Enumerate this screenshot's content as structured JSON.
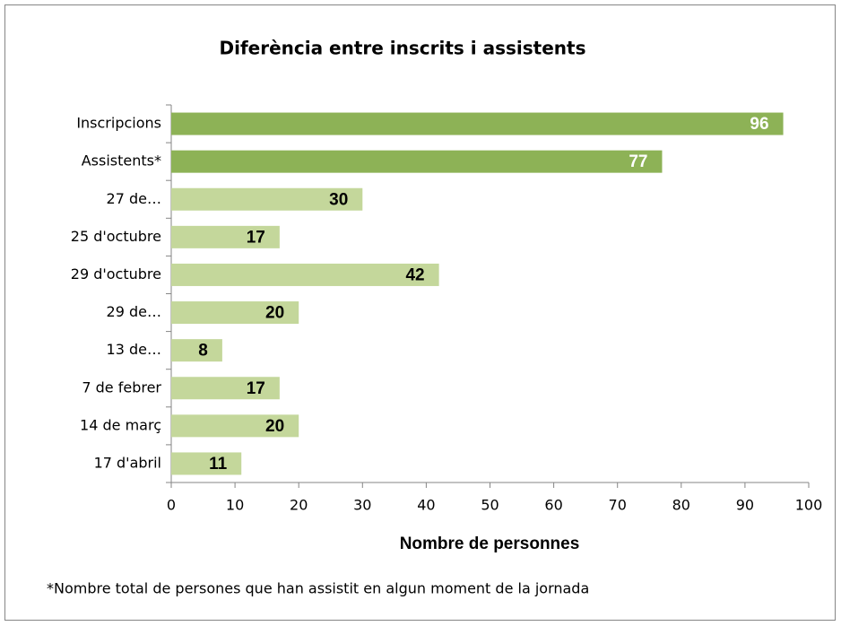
{
  "chart_data": {
    "type": "bar",
    "orientation": "horizontal",
    "title": "Diferència entre inscrits i assistents",
    "xlabel": "Nombre de personnes",
    "footnote": "*Nombre total de persones que han assistit en algun moment de la jornada",
    "categories": [
      "Inscripcions",
      "Assistents*",
      "27 de…",
      "25 d'octubre",
      "29 d'octubre",
      "29 de…",
      "13 de…",
      "7 de febrer",
      "14 de març",
      "17 d'abril"
    ],
    "values": [
      96,
      77,
      30,
      17,
      42,
      20,
      8,
      17,
      20,
      11
    ],
    "colors": [
      "#8db256",
      "#8db256",
      "#c4d79b",
      "#c4d79b",
      "#c4d79b",
      "#c4d79b",
      "#c4d79b",
      "#c4d79b",
      "#c4d79b",
      "#c4d79b"
    ],
    "label_colors": [
      "#ffffff",
      "#ffffff",
      "#000000",
      "#000000",
      "#000000",
      "#000000",
      "#000000",
      "#000000",
      "#000000",
      "#000000"
    ],
    "xlim": [
      0,
      100
    ],
    "xticks": [
      0,
      10,
      20,
      30,
      40,
      50,
      60,
      70,
      80,
      90,
      100
    ],
    "grid": false
  }
}
